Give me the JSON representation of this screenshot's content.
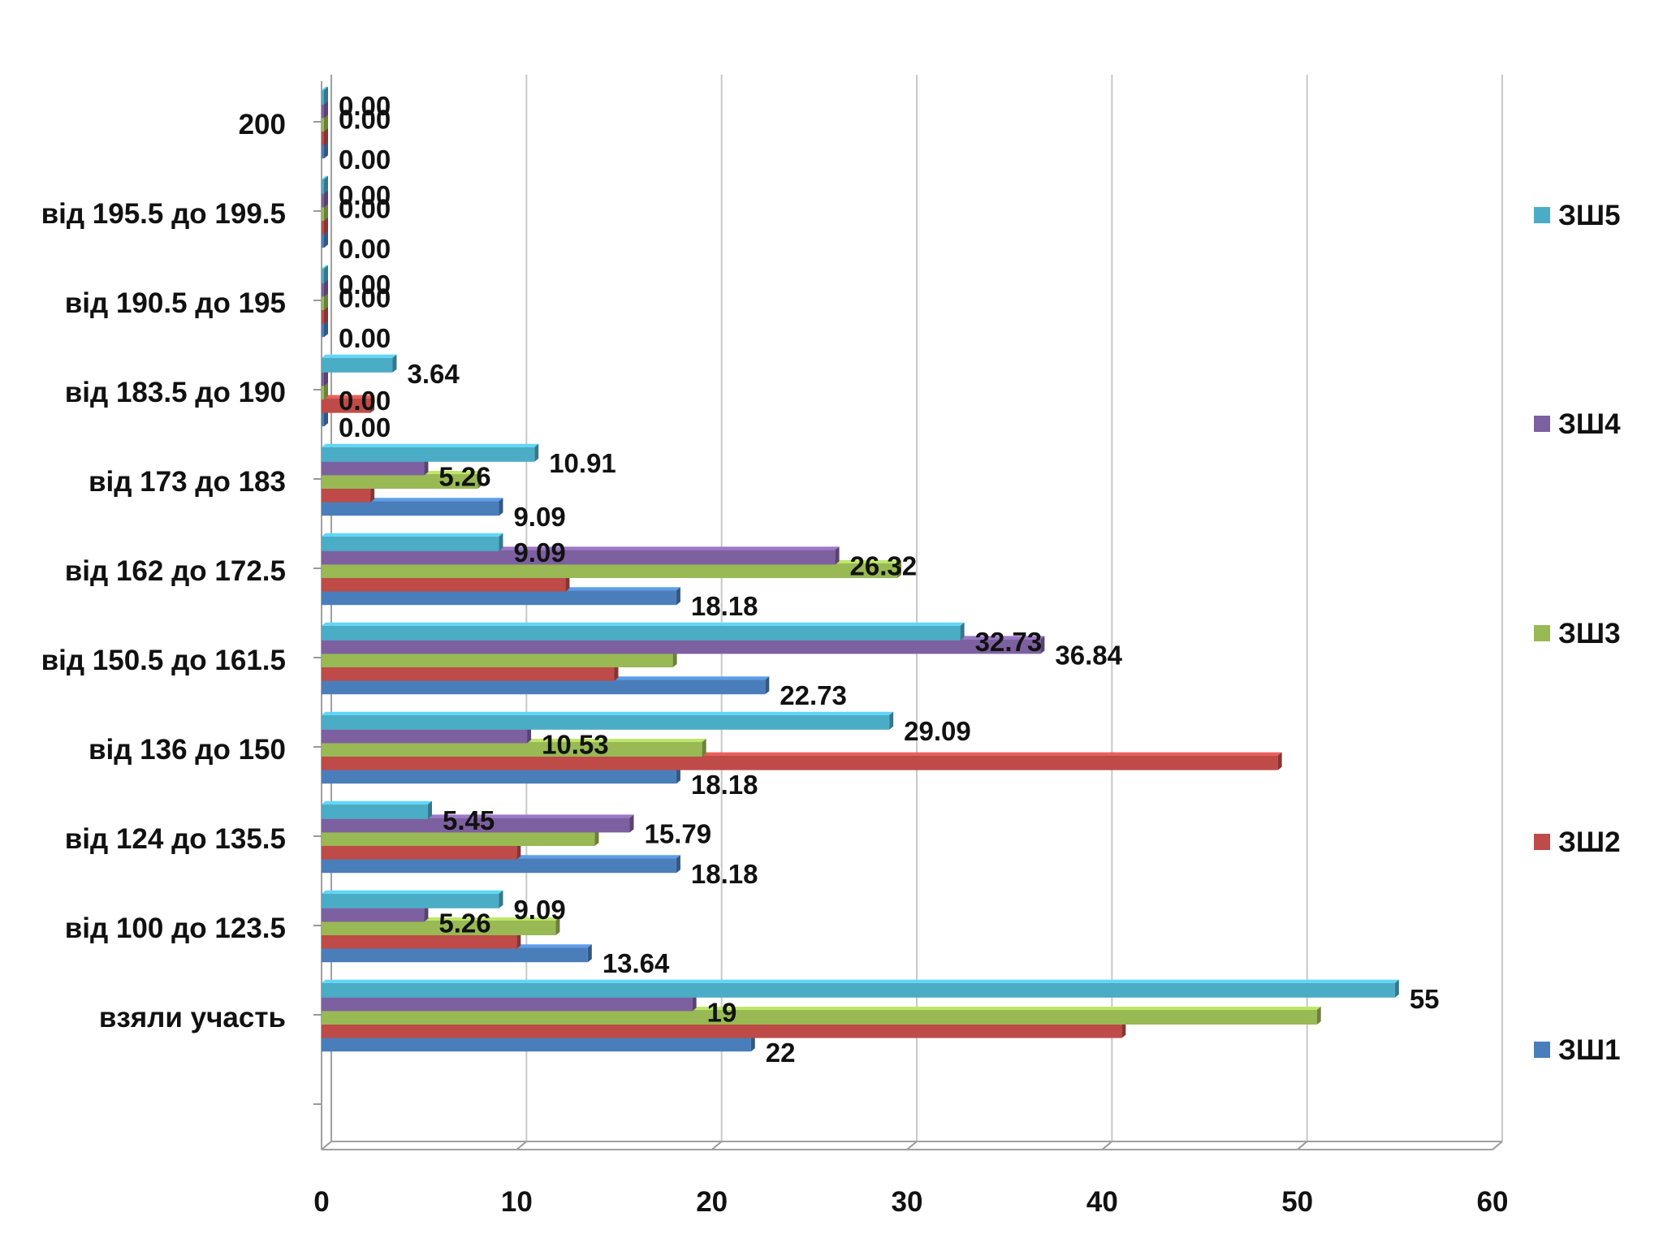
{
  "chart_data": {
    "type": "bar",
    "orientation": "horizontal",
    "title": "",
    "xlabel": "",
    "ylabel": "",
    "xlim": [
      0,
      60
    ],
    "x_ticks": [
      "0",
      "10",
      "20",
      "30",
      "40",
      "50",
      "60"
    ],
    "grid": true,
    "legend_position": "right",
    "categories": [
      "взяли участь",
      "від 100 до 123.5",
      "від 124 до 135.5",
      "від 136 до 150",
      "від 150.5 до 161.5",
      "від 162 до 172.5",
      "від 173 до 183",
      "від 183.5 до 190",
      "від 190.5 до 195",
      "від 195.5 до 199.5",
      "200"
    ],
    "series": [
      {
        "name": "ЗШ1",
        "color": "#4A7EBB",
        "values": [
          22,
          13.64,
          18.18,
          18.18,
          22.73,
          18.18,
          9.09,
          0,
          0,
          0,
          0
        ],
        "labels": [
          "22",
          "13.64",
          "18.18",
          "18.18",
          "22.73",
          "18.18",
          "9.09",
          "0.00",
          "0.00",
          "0.00",
          "0.00"
        ]
      },
      {
        "name": "ЗШ2",
        "color": "#BE4B48",
        "values": [
          41,
          10,
          10,
          49,
          15,
          12.5,
          2.5,
          2.5,
          0,
          0,
          0
        ],
        "labels": [
          "",
          "",
          "",
          "",
          "",
          "",
          "",
          "",
          "",
          "",
          ""
        ]
      },
      {
        "name": "ЗШ3",
        "color": "#98B954",
        "values": [
          51,
          12,
          14,
          19.5,
          18,
          29.5,
          8,
          0,
          0,
          0,
          0
        ],
        "labels": [
          "",
          "",
          "",
          "",
          "",
          "",
          "",
          "0.00",
          "",
          "",
          ""
        ]
      },
      {
        "name": "ЗШ4",
        "color": "#7D60A0",
        "values": [
          19,
          5.26,
          15.79,
          10.53,
          36.84,
          26.32,
          5.26,
          0,
          0,
          0,
          0
        ],
        "labels": [
          "19",
          "5.26",
          "15.79",
          "10.53",
          "36.84",
          "26.32",
          "5.26",
          "",
          "0.00",
          "0.00",
          "0.00"
        ]
      },
      {
        "name": "ЗШ5",
        "color": "#4BACC6",
        "values": [
          55,
          9.09,
          5.45,
          29.09,
          32.73,
          9.09,
          10.91,
          3.64,
          0,
          0,
          0
        ],
        "labels": [
          "55",
          "9.09",
          "5.45",
          "29.09",
          "32.73",
          "9.09",
          "10.91",
          "3.64",
          "0.00",
          "0.00",
          "0.00"
        ]
      }
    ],
    "legend_order": [
      "ЗШ5",
      "ЗШ4",
      "ЗШ3",
      "ЗШ2",
      "ЗШ1"
    ]
  }
}
